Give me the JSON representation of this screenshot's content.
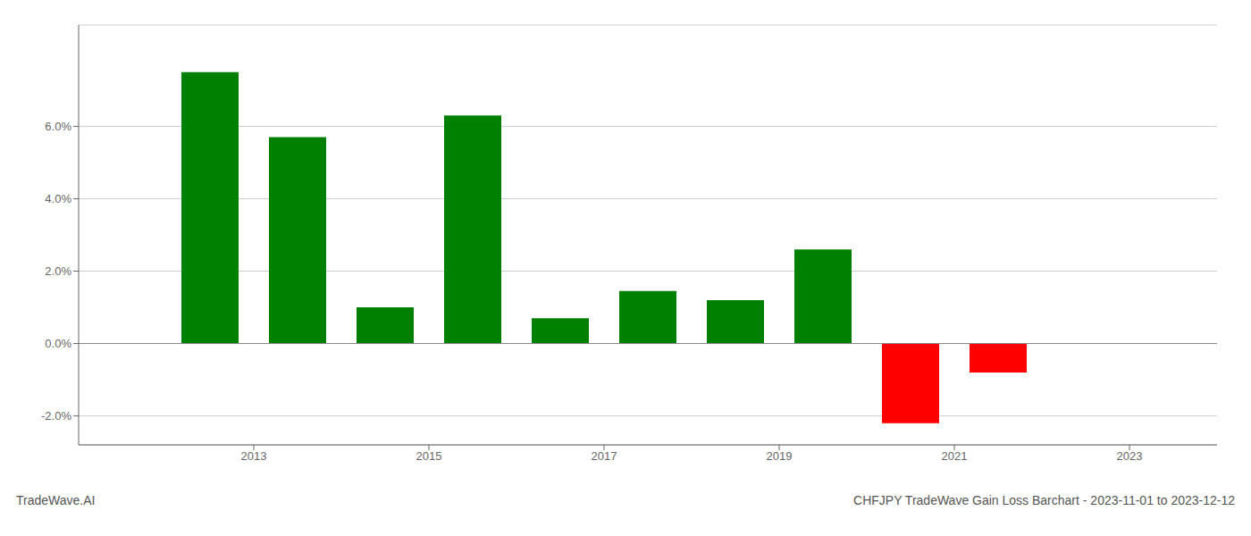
{
  "chart_data": {
    "type": "bar",
    "title": "CHFJPY TradeWave Gain Loss Barchart - 2023-11-01 to 2023-12-12",
    "annotations": [
      "TradeWave.AI"
    ],
    "x": [
      2013,
      2014,
      2015,
      2016,
      2017,
      2018,
      2019,
      2020,
      2021,
      2022
    ],
    "values": [
      0.075,
      0.057,
      0.01,
      0.063,
      0.007,
      0.0145,
      0.012,
      0.026,
      -0.022,
      -0.008
    ],
    "colors": [
      "#008000",
      "#008000",
      "#008000",
      "#008000",
      "#008000",
      "#008000",
      "#008000",
      "#008000",
      "#ff0000",
      "#ff0000"
    ],
    "xlim": [
      2011.5,
      2024.5
    ],
    "xticks": [
      {
        "value": 2013.5,
        "label": "2013"
      },
      {
        "value": 2015.5,
        "label": "2015"
      },
      {
        "value": 2017.5,
        "label": "2017"
      },
      {
        "value": 2019.5,
        "label": "2019"
      },
      {
        "value": 2021.5,
        "label": "2021"
      },
      {
        "value": 2023.5,
        "label": "2023"
      }
    ],
    "ylim": [
      -0.028,
      0.088
    ],
    "yticks": [
      {
        "value": -0.02,
        "label": "-2.0%"
      },
      {
        "value": 0.0,
        "label": "0.0%"
      },
      {
        "value": 0.02,
        "label": "2.0%"
      },
      {
        "value": 0.04,
        "label": "4.0%"
      },
      {
        "value": 0.06,
        "label": "6.0%"
      }
    ],
    "grid": true
  }
}
